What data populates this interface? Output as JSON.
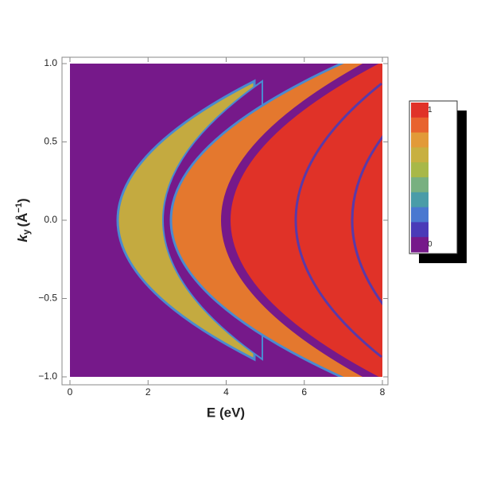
{
  "chart_data": {
    "type": "density",
    "xlabel": "E (eV)",
    "ylabel": {
      "base": "k",
      "sub": "y",
      "open": "(Å",
      "sup": "−1",
      "close": ")"
    },
    "xlim": [
      0,
      8
    ],
    "xticks": [
      0,
      2,
      4,
      6,
      8
    ],
    "ylim": [
      -1,
      1
    ],
    "yticks": [
      {
        "value": -1,
        "label": "−1.0"
      },
      {
        "value": -0.5,
        "label": "−0.5"
      },
      {
        "value": 0,
        "label": "0.0"
      },
      {
        "value": 0.5,
        "label": "0.5"
      },
      {
        "value": 1,
        "label": "1.0"
      }
    ],
    "colorbar": {
      "colors": [
        "#e03228",
        "#e8632e",
        "#e29a38",
        "#c8b040",
        "#a8b848",
        "#78b080",
        "#4a9ca8",
        "#4a78d0",
        "#4a3ab8",
        "#76198a"
      ],
      "ticks": [
        1,
        0
      ]
    }
  }
}
